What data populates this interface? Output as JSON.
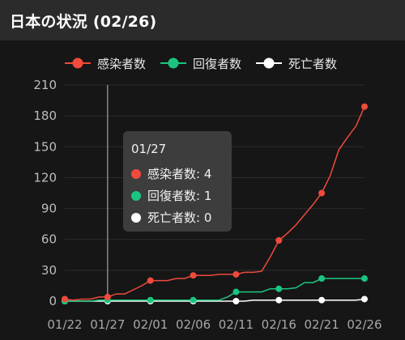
{
  "header": {
    "title": "日本の状況 (02/26)"
  },
  "colors": {
    "infected": "#f04a3c",
    "recovered": "#1cc57f",
    "deaths": "#ffffff",
    "grid": "#2c2c2c",
    "cursor": "#bfbfbf"
  },
  "tooltip": {
    "date": "01/27",
    "rows": [
      {
        "label": "感染者数: 4",
        "color": "#f04a3c"
      },
      {
        "label": "回復者数: 1",
        "color": "#1cc57f"
      },
      {
        "label": "死亡者数: 0",
        "color": "#ffffff"
      }
    ]
  },
  "chart_data": {
    "type": "line",
    "title": "日本の状況 (02/26)",
    "x_start": "01/22",
    "x_end": "02/26",
    "x_tick_labels": [
      "01/22",
      "01/27",
      "02/01",
      "02/06",
      "02/11",
      "02/16",
      "02/21",
      "02/26"
    ],
    "ylim": [
      0,
      210
    ],
    "y_ticks": [
      0,
      30,
      60,
      90,
      120,
      150,
      180,
      210
    ],
    "grid": true,
    "legend_position": "top",
    "highlighted_date": "01/27",
    "series": [
      {
        "name": "感染者数",
        "color": "#f04a3c",
        "points": [
          [
            "01/22",
            2
          ],
          [
            "01/23",
            1
          ],
          [
            "01/24",
            2
          ],
          [
            "01/25",
            2
          ],
          [
            "01/26",
            4
          ],
          [
            "01/27",
            4
          ],
          [
            "01/28",
            7
          ],
          [
            "01/29",
            7
          ],
          [
            "01/30",
            11
          ],
          [
            "01/31",
            15
          ],
          [
            "02/01",
            20
          ],
          [
            "02/02",
            20
          ],
          [
            "02/03",
            20
          ],
          [
            "02/04",
            22
          ],
          [
            "02/05",
            22
          ],
          [
            "02/06",
            25
          ],
          [
            "02/07",
            25
          ],
          [
            "02/08",
            25
          ],
          [
            "02/09",
            26
          ],
          [
            "02/10",
            26
          ],
          [
            "02/11",
            26
          ],
          [
            "02/12",
            28
          ],
          [
            "02/13",
            28
          ],
          [
            "02/14",
            29
          ],
          [
            "02/15",
            43
          ],
          [
            "02/16",
            59
          ],
          [
            "02/17",
            66
          ],
          [
            "02/18",
            74
          ],
          [
            "02/19",
            84
          ],
          [
            "02/20",
            94
          ],
          [
            "02/21",
            105
          ],
          [
            "02/22",
            122
          ],
          [
            "02/23",
            147
          ],
          [
            "02/24",
            159
          ],
          [
            "02/25",
            170
          ],
          [
            "02/26",
            189
          ]
        ]
      },
      {
        "name": "回復者数",
        "color": "#1cc57f",
        "points": [
          [
            "01/22",
            0
          ],
          [
            "01/23",
            0
          ],
          [
            "01/24",
            0
          ],
          [
            "01/25",
            0
          ],
          [
            "01/26",
            1
          ],
          [
            "01/27",
            1
          ],
          [
            "01/28",
            1
          ],
          [
            "01/29",
            1
          ],
          [
            "01/30",
            1
          ],
          [
            "01/31",
            1
          ],
          [
            "02/01",
            1
          ],
          [
            "02/02",
            1
          ],
          [
            "02/03",
            1
          ],
          [
            "02/04",
            1
          ],
          [
            "02/05",
            1
          ],
          [
            "02/06",
            1
          ],
          [
            "02/07",
            1
          ],
          [
            "02/08",
            1
          ],
          [
            "02/09",
            1
          ],
          [
            "02/10",
            4
          ],
          [
            "02/11",
            9
          ],
          [
            "02/12",
            9
          ],
          [
            "02/13",
            9
          ],
          [
            "02/14",
            9
          ],
          [
            "02/15",
            12
          ],
          [
            "02/16",
            12
          ],
          [
            "02/17",
            12
          ],
          [
            "02/18",
            13
          ],
          [
            "02/19",
            18
          ],
          [
            "02/20",
            18
          ],
          [
            "02/21",
            22
          ],
          [
            "02/22",
            22
          ],
          [
            "02/23",
            22
          ],
          [
            "02/24",
            22
          ],
          [
            "02/25",
            22
          ],
          [
            "02/26",
            22
          ]
        ]
      },
      {
        "name": "死亡者数",
        "color": "#ffffff",
        "points": [
          [
            "01/22",
            0
          ],
          [
            "01/23",
            0
          ],
          [
            "01/24",
            0
          ],
          [
            "01/25",
            0
          ],
          [
            "01/26",
            0
          ],
          [
            "01/27",
            0
          ],
          [
            "01/28",
            0
          ],
          [
            "01/29",
            0
          ],
          [
            "01/30",
            0
          ],
          [
            "01/31",
            0
          ],
          [
            "02/01",
            0
          ],
          [
            "02/02",
            0
          ],
          [
            "02/03",
            0
          ],
          [
            "02/04",
            0
          ],
          [
            "02/05",
            0
          ],
          [
            "02/06",
            0
          ],
          [
            "02/07",
            0
          ],
          [
            "02/08",
            0
          ],
          [
            "02/09",
            0
          ],
          [
            "02/10",
            0
          ],
          [
            "02/11",
            0
          ],
          [
            "02/12",
            0
          ],
          [
            "02/13",
            1
          ],
          [
            "02/14",
            1
          ],
          [
            "02/15",
            1
          ],
          [
            "02/16",
            1
          ],
          [
            "02/17",
            1
          ],
          [
            "02/18",
            1
          ],
          [
            "02/19",
            1
          ],
          [
            "02/20",
            1
          ],
          [
            "02/21",
            1
          ],
          [
            "02/22",
            1
          ],
          [
            "02/23",
            1
          ],
          [
            "02/24",
            1
          ],
          [
            "02/25",
            1
          ],
          [
            "02/26",
            2
          ]
        ]
      }
    ]
  }
}
